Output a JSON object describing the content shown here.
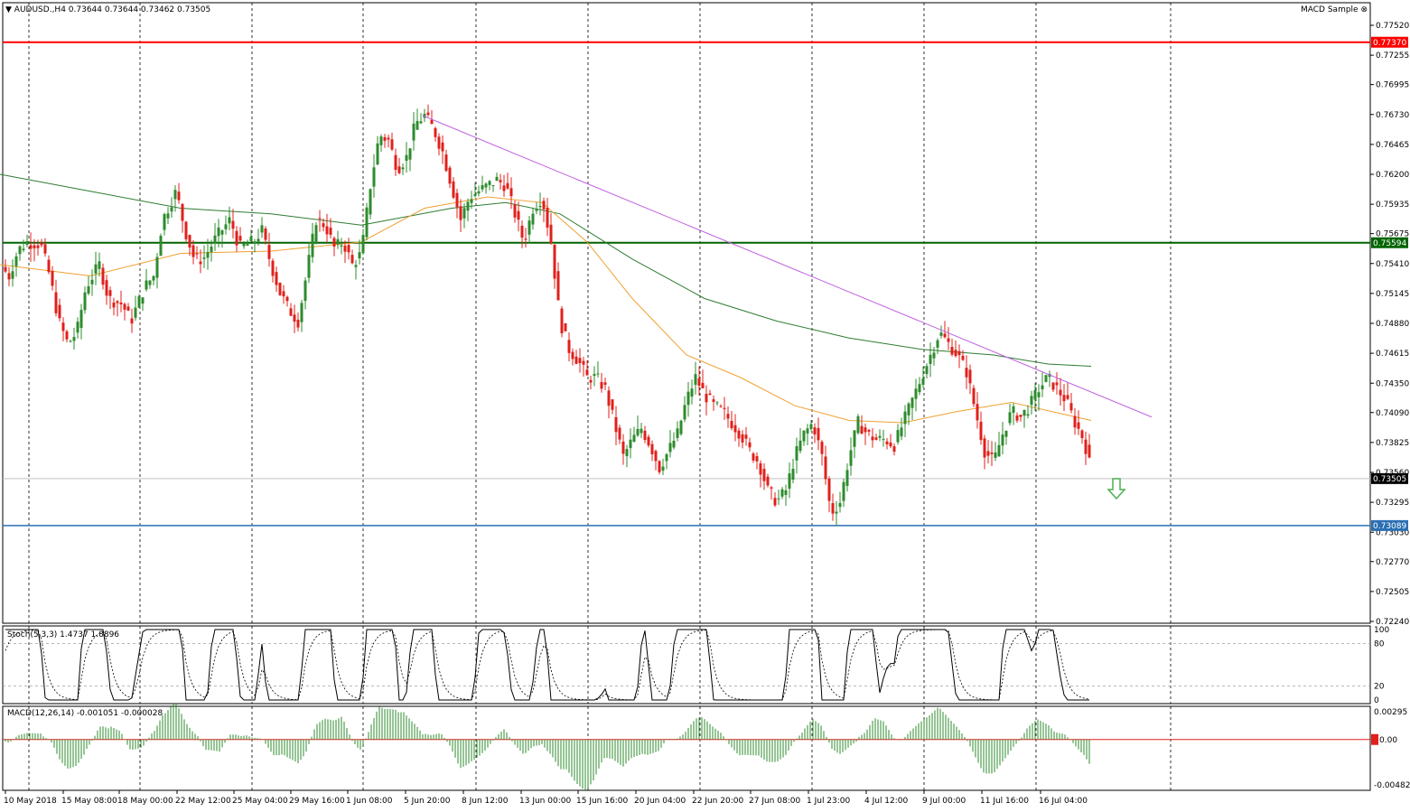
{
  "header": {
    "symbol_line": "AUDUSD.,H4  0.73644 0.73644 0.73462 0.73505",
    "indicator_name": "MACD Sample"
  },
  "stoch_label": "Stoch(5,3,3) 1.4737 1.8896",
  "macd_label": "MACD(12,26,14) -0.001051 -0.000028",
  "colors": {
    "bull": "#2e8b2e",
    "bear": "#e0201b",
    "resistance": "#ff0000",
    "support_green": "#006400",
    "support_blue": "#2a6fb4",
    "trendline": "#c060e0",
    "ma_fast": "#f0a030",
    "ma_slow": "#2e7d32",
    "arrow": "#4caf50"
  },
  "price_axis": {
    "ticks": [
      "0.77520",
      "0.77255",
      "0.76995",
      "0.76730",
      "0.76465",
      "0.76200",
      "0.75935",
      "0.75675",
      "0.75410",
      "0.75145",
      "0.74880",
      "0.74615",
      "0.74350",
      "0.74090",
      "0.73825",
      "0.73560",
      "0.73295",
      "0.73030",
      "0.72770",
      "0.72505",
      "0.72240"
    ],
    "min": 0.7224,
    "max": 0.7752
  },
  "price_labels": {
    "resistance": "0.77370",
    "support_green": "0.75594",
    "current": "0.73505",
    "support_blue": "0.73089"
  },
  "stoch_axis": {
    "ticks": [
      "100",
      "80",
      "20",
      "0"
    ]
  },
  "macd_axis": {
    "ticks": [
      "0.00295",
      "0.00",
      "-0.00482"
    ],
    "zero_label": "0.00"
  },
  "time_axis": [
    "10 May 2018",
    "15 May 08:00",
    "18 May 00:00",
    "22 May 12:00",
    "25 May 04:00",
    "29 May 16:00",
    "1 Jun 08:00",
    "5 Jun 20:00",
    "8 Jun 12:00",
    "13 Jun 00:00",
    "15 Jun 16:00",
    "20 Jun 04:00",
    "22 Jun 20:00",
    "27 Jun 08:00",
    "1 Jul 23:00",
    "4 Jul 12:00",
    "9 Jul 00:00",
    "11 Jul 16:00",
    "16 Jul 04:00"
  ],
  "chart_data": {
    "type": "candlestick",
    "title": "AUDUSD.,H4",
    "ohlc_last": {
      "open": 0.73644,
      "high": 0.73644,
      "low": 0.73462,
      "close": 0.73505
    },
    "price_path": [
      [
        0,
        0.754
      ],
      [
        10,
        0.753
      ],
      [
        20,
        0.7553
      ],
      [
        30,
        0.756
      ],
      [
        45,
        0.7558
      ],
      [
        55,
        0.753
      ],
      [
        65,
        0.749
      ],
      [
        75,
        0.747
      ],
      [
        85,
        0.748
      ],
      [
        95,
        0.752
      ],
      [
        110,
        0.754
      ],
      [
        120,
        0.751
      ],
      [
        135,
        0.7505
      ],
      [
        145,
        0.749
      ],
      [
        160,
        0.752
      ],
      [
        170,
        0.753
      ],
      [
        180,
        0.758
      ],
      [
        195,
        0.7605
      ],
      [
        205,
        0.757
      ],
      [
        215,
        0.7545
      ],
      [
        225,
        0.7545
      ],
      [
        240,
        0.7565
      ],
      [
        255,
        0.758
      ],
      [
        265,
        0.7555
      ],
      [
        280,
        0.756
      ],
      [
        290,
        0.757
      ],
      [
        300,
        0.754
      ],
      [
        310,
        0.7515
      ],
      [
        320,
        0.75
      ],
      [
        330,
        0.749
      ],
      [
        340,
        0.7535
      ],
      [
        350,
        0.758
      ],
      [
        360,
        0.7575
      ],
      [
        370,
        0.7555
      ],
      [
        380,
        0.756
      ],
      [
        390,
        0.754
      ],
      [
        400,
        0.755
      ],
      [
        410,
        0.761
      ],
      [
        420,
        0.7655
      ],
      [
        430,
        0.765
      ],
      [
        440,
        0.7625
      ],
      [
        450,
        0.7635
      ],
      [
        460,
        0.7665
      ],
      [
        470,
        0.7672
      ],
      [
        480,
        0.766
      ],
      [
        490,
        0.764
      ],
      [
        500,
        0.761
      ],
      [
        510,
        0.758
      ],
      [
        520,
        0.76
      ],
      [
        530,
        0.7605
      ],
      [
        540,
        0.761
      ],
      [
        550,
        0.7615
      ],
      [
        560,
        0.761
      ],
      [
        570,
        0.7585
      ],
      [
        580,
        0.756
      ],
      [
        590,
        0.759
      ],
      [
        600,
        0.76
      ],
      [
        610,
        0.756
      ],
      [
        620,
        0.749
      ],
      [
        630,
        0.7465
      ],
      [
        640,
        0.7455
      ],
      [
        650,
        0.744
      ],
      [
        660,
        0.744
      ],
      [
        670,
        0.743
      ],
      [
        680,
        0.74
      ],
      [
        690,
        0.737
      ],
      [
        700,
        0.7385
      ],
      [
        710,
        0.7395
      ],
      [
        720,
        0.738
      ],
      [
        730,
        0.736
      ],
      [
        740,
        0.7375
      ],
      [
        750,
        0.739
      ],
      [
        760,
        0.742
      ],
      [
        770,
        0.744
      ],
      [
        780,
        0.7425
      ],
      [
        790,
        0.7415
      ],
      [
        800,
        0.741
      ],
      [
        810,
        0.74
      ],
      [
        820,
        0.739
      ],
      [
        830,
        0.7375
      ],
      [
        840,
        0.7365
      ],
      [
        850,
        0.734
      ],
      [
        860,
        0.733
      ],
      [
        870,
        0.734
      ],
      [
        880,
        0.737
      ],
      [
        890,
        0.739
      ],
      [
        900,
        0.74
      ],
      [
        910,
        0.737
      ],
      [
        920,
        0.732
      ],
      [
        930,
        0.733
      ],
      [
        940,
        0.737
      ],
      [
        950,
        0.74
      ],
      [
        960,
        0.739
      ],
      [
        970,
        0.7385
      ],
      [
        980,
        0.7385
      ],
      [
        990,
        0.738
      ],
      [
        1000,
        0.74
      ],
      [
        1010,
        0.742
      ],
      [
        1020,
        0.744
      ],
      [
        1030,
        0.746
      ],
      [
        1040,
        0.748
      ],
      [
        1050,
        0.747
      ],
      [
        1060,
        0.746
      ],
      [
        1070,
        0.7445
      ],
      [
        1080,
        0.741
      ],
      [
        1090,
        0.7375
      ],
      [
        1100,
        0.7365
      ],
      [
        1110,
        0.739
      ],
      [
        1120,
        0.741
      ],
      [
        1130,
        0.7405
      ],
      [
        1140,
        0.7415
      ],
      [
        1150,
        0.743
      ],
      [
        1160,
        0.744
      ],
      [
        1170,
        0.743
      ],
      [
        1180,
        0.742
      ],
      [
        1190,
        0.74
      ],
      [
        1200,
        0.7385
      ],
      [
        1210,
        0.73505
      ]
    ],
    "trendline": {
      "start": {
        "bar_x": 468,
        "price": 0.7672
      },
      "end": {
        "bar_x": 1275,
        "price": 0.7405
      }
    },
    "ma_fast_path": [
      [
        0,
        0.754
      ],
      [
        100,
        0.753
      ],
      [
        200,
        0.755
      ],
      [
        300,
        0.7552
      ],
      [
        400,
        0.756
      ],
      [
        470,
        0.759
      ],
      [
        540,
        0.76
      ],
      [
        600,
        0.7595
      ],
      [
        650,
        0.756
      ],
      [
        700,
        0.751
      ],
      [
        760,
        0.746
      ],
      [
        820,
        0.744
      ],
      [
        880,
        0.7415
      ],
      [
        940,
        0.7402
      ],
      [
        1000,
        0.74
      ],
      [
        1060,
        0.741
      ],
      [
        1120,
        0.7418
      ],
      [
        1208,
        0.7402
      ]
    ],
    "ma_slow_path": [
      [
        0,
        0.762
      ],
      [
        100,
        0.7605
      ],
      [
        200,
        0.759
      ],
      [
        300,
        0.7585
      ],
      [
        400,
        0.7575
      ],
      [
        500,
        0.759
      ],
      [
        560,
        0.7595
      ],
      [
        620,
        0.7585
      ],
      [
        700,
        0.7545
      ],
      [
        780,
        0.751
      ],
      [
        860,
        0.749
      ],
      [
        940,
        0.7475
      ],
      [
        1020,
        0.7465
      ],
      [
        1100,
        0.746
      ],
      [
        1160,
        0.7452
      ],
      [
        1208,
        0.745
      ]
    ],
    "levels": {
      "resistance": 0.7737,
      "support_green": 0.75594,
      "current": 0.73505,
      "support_blue": 0.73089
    }
  }
}
